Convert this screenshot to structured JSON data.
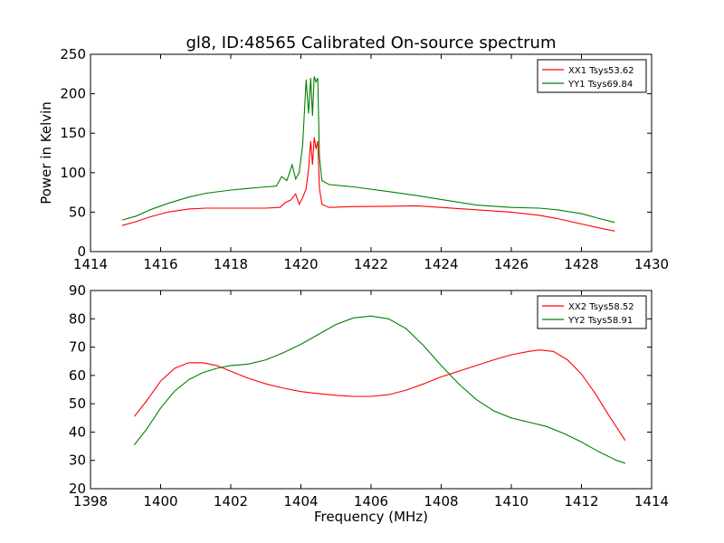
{
  "chart_data": [
    {
      "type": "line",
      "title": "gl8, ID:48565 Calibrated On-source spectrum",
      "xlabel": "",
      "ylabel": "Power in Kelvin",
      "xlim": [
        1414,
        1430
      ],
      "ylim": [
        0,
        250
      ],
      "xticks": [
        "1414",
        "1416",
        "1418",
        "1420",
        "1422",
        "1424",
        "1426",
        "1428",
        "1430"
      ],
      "yticks": [
        "0",
        "50",
        "100",
        "150",
        "200",
        "250"
      ],
      "legend_position": "top-right",
      "grid": false,
      "series": [
        {
          "name": "XX1 Tsys53.62",
          "color": "#ff0000",
          "x": [
            1414.9,
            1415.3,
            1415.7,
            1416.2,
            1416.8,
            1417.3,
            1418.0,
            1418.5,
            1419.0,
            1419.4,
            1419.55,
            1419.7,
            1419.85,
            1419.95,
            1420.05,
            1420.15,
            1420.22,
            1420.28,
            1420.33,
            1420.38,
            1420.43,
            1420.48,
            1420.53,
            1420.6,
            1420.8,
            1421.5,
            1422.5,
            1423.3,
            1424.0,
            1425.0,
            1426.0,
            1426.8,
            1427.3,
            1428.0,
            1428.5,
            1428.95
          ],
          "y": [
            33,
            38,
            44,
            50,
            54,
            55,
            55,
            55,
            55,
            56,
            62,
            65,
            73,
            60,
            68,
            80,
            105,
            140,
            110,
            145,
            130,
            140,
            80,
            60,
            56,
            57,
            57.5,
            58,
            56,
            53,
            50,
            46,
            42,
            35,
            30,
            26
          ]
        },
        {
          "name": "YY1 Tsys69.84",
          "color": "#008000",
          "x": [
            1414.9,
            1415.3,
            1415.7,
            1416.2,
            1416.8,
            1417.3,
            1418.0,
            1418.5,
            1419.0,
            1419.3,
            1419.45,
            1419.6,
            1419.75,
            1419.85,
            1419.95,
            1420.05,
            1420.15,
            1420.22,
            1420.28,
            1420.33,
            1420.38,
            1420.43,
            1420.48,
            1420.53,
            1420.6,
            1420.8,
            1421.5,
            1422.5,
            1423.3,
            1424.0,
            1425.0,
            1426.0,
            1426.8,
            1427.3,
            1428.0,
            1428.5,
            1428.95
          ],
          "y": [
            40,
            45,
            53,
            61,
            69,
            74,
            78,
            80,
            82,
            83,
            95,
            90,
            110,
            92,
            100,
            135,
            218,
            175,
            220,
            172,
            222,
            215,
            220,
            120,
            90,
            85,
            82,
            76,
            71,
            66,
            59,
            56,
            55,
            53,
            48,
            42,
            37
          ]
        }
      ]
    },
    {
      "type": "line",
      "title": "",
      "xlabel": "Frequency (MHz)",
      "ylabel": "",
      "xlim": [
        1398,
        1414
      ],
      "ylim": [
        20,
        90
      ],
      "xticks": [
        "1398",
        "1400",
        "1402",
        "1404",
        "1406",
        "1408",
        "1410",
        "1412",
        "1414"
      ],
      "yticks": [
        "20",
        "30",
        "40",
        "50",
        "60",
        "70",
        "80",
        "90"
      ],
      "legend_position": "top-right",
      "grid": false,
      "series": [
        {
          "name": "XX2 Tsys58.52",
          "color": "#ff0000",
          "x": [
            1399.25,
            1399.6,
            1400.0,
            1400.4,
            1400.8,
            1401.2,
            1401.6,
            1402.0,
            1402.5,
            1403.0,
            1403.5,
            1404.0,
            1404.5,
            1405.0,
            1405.5,
            1406.0,
            1406.5,
            1407.0,
            1407.5,
            1408.0,
            1408.5,
            1409.0,
            1409.5,
            1410.0,
            1410.5,
            1410.8,
            1411.2,
            1411.6,
            1412.0,
            1412.4,
            1412.8,
            1413.25
          ],
          "y": [
            45.5,
            51,
            58,
            62.5,
            64.5,
            64.5,
            63.5,
            61.5,
            59,
            57,
            55.5,
            54.3,
            53.6,
            53,
            52.6,
            52.6,
            53.2,
            54.8,
            57,
            59.5,
            61.5,
            63.5,
            65.5,
            67.3,
            68.5,
            69,
            68.5,
            65.5,
            60.5,
            53.5,
            45.5,
            37
          ]
        },
        {
          "name": "YY2 Tsys58.91",
          "color": "#008000",
          "x": [
            1399.25,
            1399.6,
            1400.0,
            1400.4,
            1400.8,
            1401.2,
            1401.6,
            1402.0,
            1402.5,
            1403.0,
            1403.5,
            1404.0,
            1404.5,
            1405.0,
            1405.5,
            1406.0,
            1406.5,
            1407.0,
            1407.5,
            1408.0,
            1408.5,
            1409.0,
            1409.5,
            1410.0,
            1410.5,
            1411.0,
            1411.5,
            1412.0,
            1412.5,
            1413.0,
            1413.25
          ],
          "y": [
            35.5,
            41,
            48.5,
            54.5,
            58.5,
            61,
            62.5,
            63.5,
            64,
            65.5,
            68,
            71,
            74.5,
            78,
            80.3,
            81,
            80,
            76.5,
            70.5,
            63.5,
            57,
            51.5,
            47.5,
            45,
            43.5,
            42,
            39.5,
            36.5,
            33,
            30,
            29
          ]
        }
      ]
    }
  ]
}
